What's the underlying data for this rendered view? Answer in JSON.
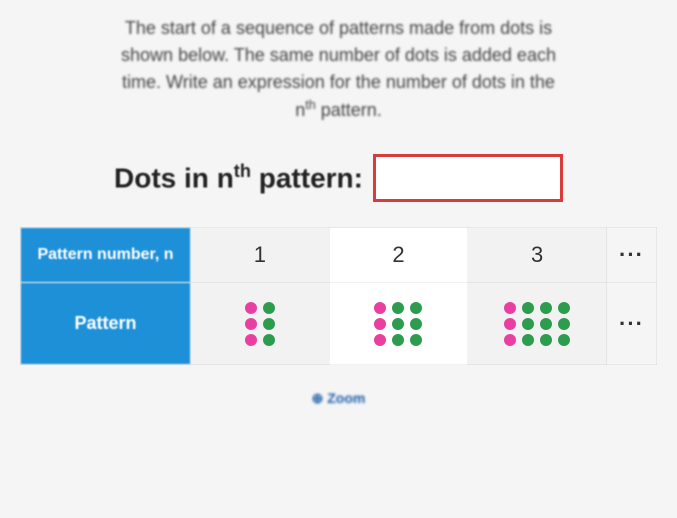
{
  "question": {
    "text_lines": [
      "The start of a sequence of patterns made from dots is",
      "shown below. The same number of dots is added each",
      "time. Write an expression for the number of dots in the",
      "n<sup>th</sup> pattern."
    ]
  },
  "answer": {
    "label_html": "Dots in n<sup>th</sup> pattern:",
    "value": "",
    "box_border_color": "#d93a3a"
  },
  "table": {
    "header_color": "#1e90d8",
    "cell_bg_odd": "#f2f2f2",
    "cell_bg_even": "#ffffff",
    "row1_label": "Pattern number, n",
    "row2_label": "Pattern",
    "numbers": [
      "1",
      "2",
      "3"
    ],
    "ellipsis": "···",
    "dot_colors": {
      "pink": "#e83fa0",
      "green": "#2e9c4f"
    },
    "patterns": [
      {
        "columns": [
          {
            "color": "pink",
            "count": 3
          },
          {
            "color": "green",
            "count": 3
          }
        ]
      },
      {
        "columns": [
          {
            "color": "pink",
            "count": 3
          },
          {
            "color": "green",
            "count": 3
          },
          {
            "color": "green",
            "count": 3
          }
        ]
      },
      {
        "columns": [
          {
            "color": "pink",
            "count": 3
          },
          {
            "color": "green",
            "count": 3
          },
          {
            "color": "green",
            "count": 3
          },
          {
            "color": "green",
            "count": 3
          }
        ]
      }
    ]
  },
  "zoom": {
    "label": "⊕ Zoom",
    "color": "#1e5fa8"
  }
}
